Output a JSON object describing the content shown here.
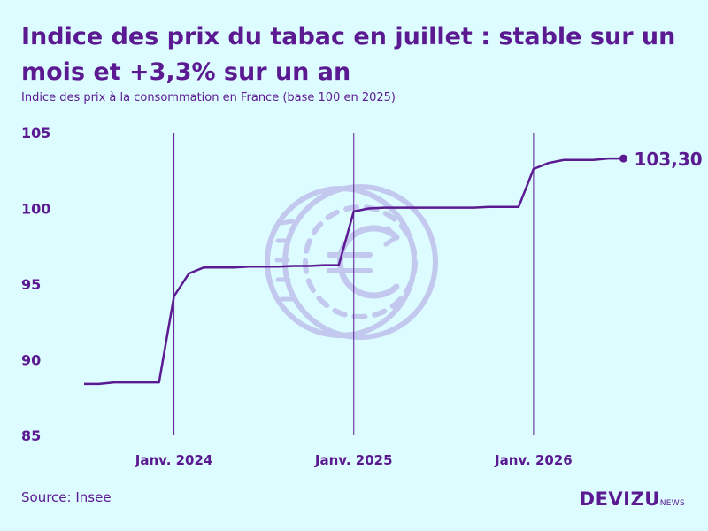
{
  "header": {
    "title": "Indice des prix du tabac en juillet : stable sur un mois et +3,3% sur un an",
    "subtitle": "Indice des prix à la consommation en France (base 100 en 2025)"
  },
  "footer": {
    "source": "Source: Insee",
    "logo_main": "DEVIZU",
    "logo_sub": "NEWS"
  },
  "colors": {
    "background": "#dcfcff",
    "line": "#5b1a91",
    "watermark": "#c3c9ee"
  },
  "icons": {
    "watermark": "euro-coin-icon"
  },
  "chart_data": {
    "type": "line",
    "x_start": "2023-07",
    "x": [
      "2023-07",
      "2023-08",
      "2023-09",
      "2023-10",
      "2023-11",
      "2023-12",
      "2024-01",
      "2024-02",
      "2024-03",
      "2024-04",
      "2024-05",
      "2024-06",
      "2024-07",
      "2024-08",
      "2024-09",
      "2024-10",
      "2024-11",
      "2024-12",
      "2025-01",
      "2025-02",
      "2025-03",
      "2025-04",
      "2025-05",
      "2025-06",
      "2025-07",
      "2025-08",
      "2025-09",
      "2025-10",
      "2025-11",
      "2025-12",
      "2026-01",
      "2026-02",
      "2026-03",
      "2026-04",
      "2026-05",
      "2026-06",
      "2026-07"
    ],
    "series": [
      {
        "values": [
          88.4,
          88.4,
          88.5,
          88.5,
          88.5,
          88.5,
          94.2,
          95.7,
          96.1,
          96.1,
          96.1,
          96.15,
          96.15,
          96.15,
          96.2,
          96.2,
          96.25,
          96.25,
          99.8,
          100.0,
          100.05,
          100.05,
          100.05,
          100.05,
          100.05,
          100.05,
          100.05,
          100.1,
          100.1,
          100.1,
          102.6,
          103.0,
          103.2,
          103.2,
          103.2,
          103.3,
          103.3
        ]
      }
    ],
    "last_value_label": "103,30",
    "ylim": [
      85,
      105
    ],
    "y_ticks": [
      105,
      100,
      95,
      90,
      85
    ],
    "x_ticks": [
      {
        "date": "2024-01",
        "label": "Janv. 2024"
      },
      {
        "date": "2025-01",
        "label": "Janv. 2025"
      },
      {
        "date": "2026-01",
        "label": "Janv. 2026"
      }
    ],
    "grid": "vertical lines at x ticks",
    "xlabel": "",
    "ylabel": ""
  }
}
